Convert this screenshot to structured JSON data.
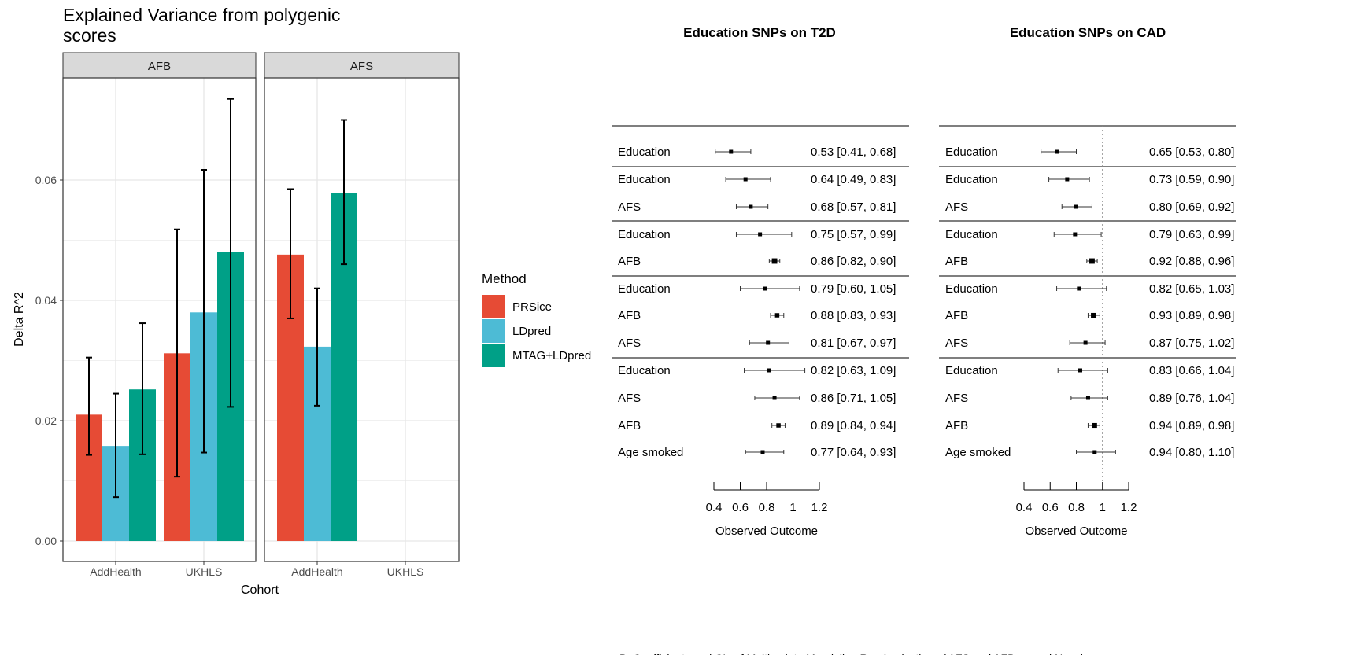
{
  "chart_data": [
    {
      "type": "bar",
      "title": "Explained Variance from polygenic scores",
      "title_lines": [
        "Explained Variance from polygenic",
        "scores"
      ],
      "xlabel": "Cohort",
      "ylabel": "Delta R^2",
      "ylim": [
        0,
        0.076
      ],
      "yticks": [
        "0.00",
        "0.02",
        "0.04",
        "0.06"
      ],
      "ytick_values": [
        0,
        0.02,
        0.04,
        0.06
      ],
      "grid": true,
      "legend_position": "right",
      "legend": {
        "title": "Method",
        "items": [
          {
            "name": "PRSice",
            "color": "#E64B35"
          },
          {
            "name": "LDpred",
            "color": "#4DBBD5"
          },
          {
            "name": "MTAG+LDpred",
            "color": "#00A087"
          }
        ]
      },
      "facets": [
        {
          "label": "AFB",
          "categories": [
            "AddHealth",
            "UKHLS"
          ],
          "series": [
            {
              "name": "PRSice",
              "values": [
                0.021,
                0.0312
              ],
              "lower": [
                0.0143,
                0.0107
              ],
              "upper": [
                0.0305,
                0.0518
              ]
            },
            {
              "name": "LDpred",
              "values": [
                0.0158,
                0.038
              ],
              "lower": [
                0.0073,
                0.0147
              ],
              "upper": [
                0.0245,
                0.0617
              ]
            },
            {
              "name": "MTAG+LDpred",
              "values": [
                0.0252,
                0.048
              ],
              "lower": [
                0.0144,
                0.0223
              ],
              "upper": [
                0.0362,
                0.0735
              ]
            }
          ]
        },
        {
          "label": "AFS",
          "categories": [
            "AddHealth",
            "UKHLS"
          ],
          "series": [
            {
              "name": "PRSice",
              "values": [
                0.0476,
                null
              ],
              "lower": [
                0.037,
                null
              ],
              "upper": [
                0.0585,
                null
              ]
            },
            {
              "name": "LDpred",
              "values": [
                0.0323,
                null
              ],
              "lower": [
                0.0225,
                null
              ],
              "upper": [
                0.042,
                null
              ]
            },
            {
              "name": "MTAG+LDpred",
              "values": [
                0.0579,
                null
              ],
              "lower": [
                0.046,
                null
              ],
              "upper": [
                0.07,
                null
              ]
            }
          ]
        }
      ]
    },
    {
      "type": "forest",
      "title": "Education SNPs on T2D",
      "xlabel": "Observed Outcome",
      "xlim": [
        0.4,
        1.2
      ],
      "xticks": [
        "0.4",
        "0.6",
        "0.8",
        "1",
        "1.2"
      ],
      "xtick_values": [
        0.4,
        0.6,
        0.8,
        1.0,
        1.2
      ],
      "reference_line": 1,
      "groups": [
        [
          {
            "label": "Education",
            "est": 0.53,
            "lo": 0.41,
            "hi": 0.68,
            "text": "0.53 [0.41, 0.68]"
          }
        ],
        [
          {
            "label": "Education",
            "est": 0.64,
            "lo": 0.49,
            "hi": 0.83,
            "text": "0.64 [0.49, 0.83]"
          },
          {
            "label": "AFS",
            "est": 0.68,
            "lo": 0.57,
            "hi": 0.81,
            "text": "0.68 [0.57, 0.81]"
          }
        ],
        [
          {
            "label": "Education",
            "est": 0.75,
            "lo": 0.57,
            "hi": 0.99,
            "text": "0.75 [0.57, 0.99]"
          },
          {
            "label": "AFB",
            "est": 0.86,
            "lo": 0.82,
            "hi": 0.9,
            "text": "0.86 [0.82, 0.90]"
          }
        ],
        [
          {
            "label": "Education",
            "est": 0.79,
            "lo": 0.6,
            "hi": 1.05,
            "text": "0.79 [0.60, 1.05]"
          },
          {
            "label": "AFB",
            "est": 0.88,
            "lo": 0.83,
            "hi": 0.93,
            "text": "0.88 [0.83, 0.93]"
          },
          {
            "label": "AFS",
            "est": 0.81,
            "lo": 0.67,
            "hi": 0.97,
            "text": "0.81 [0.67, 0.97]"
          }
        ],
        [
          {
            "label": "Education",
            "est": 0.82,
            "lo": 0.63,
            "hi": 1.09,
            "text": "0.82 [0.63, 1.09]"
          },
          {
            "label": "AFS",
            "est": 0.86,
            "lo": 0.71,
            "hi": 1.05,
            "text": "0.86 [0.71, 1.05]"
          },
          {
            "label": "AFB",
            "est": 0.89,
            "lo": 0.84,
            "hi": 0.94,
            "text": "0.89 [0.84, 0.94]"
          },
          {
            "label": "Age smoked",
            "est": 0.77,
            "lo": 0.64,
            "hi": 0.93,
            "text": "0.77 [0.64, 0.93]"
          }
        ]
      ]
    },
    {
      "type": "forest",
      "title": "Education SNPs on CAD",
      "xlabel": "Observed Outcome",
      "xlim": [
        0.4,
        1.2
      ],
      "xticks": [
        "0.4",
        "0.6",
        "0.8",
        "1",
        "1.2"
      ],
      "xtick_values": [
        0.4,
        0.6,
        0.8,
        1.0,
        1.2
      ],
      "reference_line": 1,
      "groups": [
        [
          {
            "label": "Education",
            "est": 0.65,
            "lo": 0.53,
            "hi": 0.8,
            "text": "0.65 [0.53, 0.80]"
          }
        ],
        [
          {
            "label": "Education",
            "est": 0.73,
            "lo": 0.59,
            "hi": 0.9,
            "text": "0.73 [0.59, 0.90]"
          },
          {
            "label": "AFS",
            "est": 0.8,
            "lo": 0.69,
            "hi": 0.92,
            "text": "0.80 [0.69, 0.92]"
          }
        ],
        [
          {
            "label": "Education",
            "est": 0.79,
            "lo": 0.63,
            "hi": 0.99,
            "text": "0.79 [0.63, 0.99]"
          },
          {
            "label": "AFB",
            "est": 0.92,
            "lo": 0.88,
            "hi": 0.96,
            "text": "0.92 [0.88, 0.96]"
          }
        ],
        [
          {
            "label": "Education",
            "est": 0.82,
            "lo": 0.65,
            "hi": 1.03,
            "text": "0.82 [0.65, 1.03]"
          },
          {
            "label": "AFB",
            "est": 0.93,
            "lo": 0.89,
            "hi": 0.98,
            "text": "0.93 [0.89, 0.98]"
          },
          {
            "label": "AFS",
            "est": 0.87,
            "lo": 0.75,
            "hi": 1.02,
            "text": "0.87 [0.75, 1.02]"
          }
        ],
        [
          {
            "label": "Education",
            "est": 0.83,
            "lo": 0.66,
            "hi": 1.04,
            "text": "0.83 [0.66, 1.04]"
          },
          {
            "label": "AFS",
            "est": 0.89,
            "lo": 0.76,
            "hi": 1.04,
            "text": "0.89 [0.76, 1.04]"
          },
          {
            "label": "AFB",
            "est": 0.94,
            "lo": 0.89,
            "hi": 0.98,
            "text": "0.94 [0.89, 0.98]"
          },
          {
            "label": "Age smoked",
            "est": 0.94,
            "lo": 0.8,
            "hi": 1.1,
            "text": "0.94 [0.80, 1.10]"
          }
        ]
      ]
    }
  ],
  "caption": "B. Coefficients and CIs of Multivariate Mendelian Randomization of AFS and AFB on and Nonsh"
}
